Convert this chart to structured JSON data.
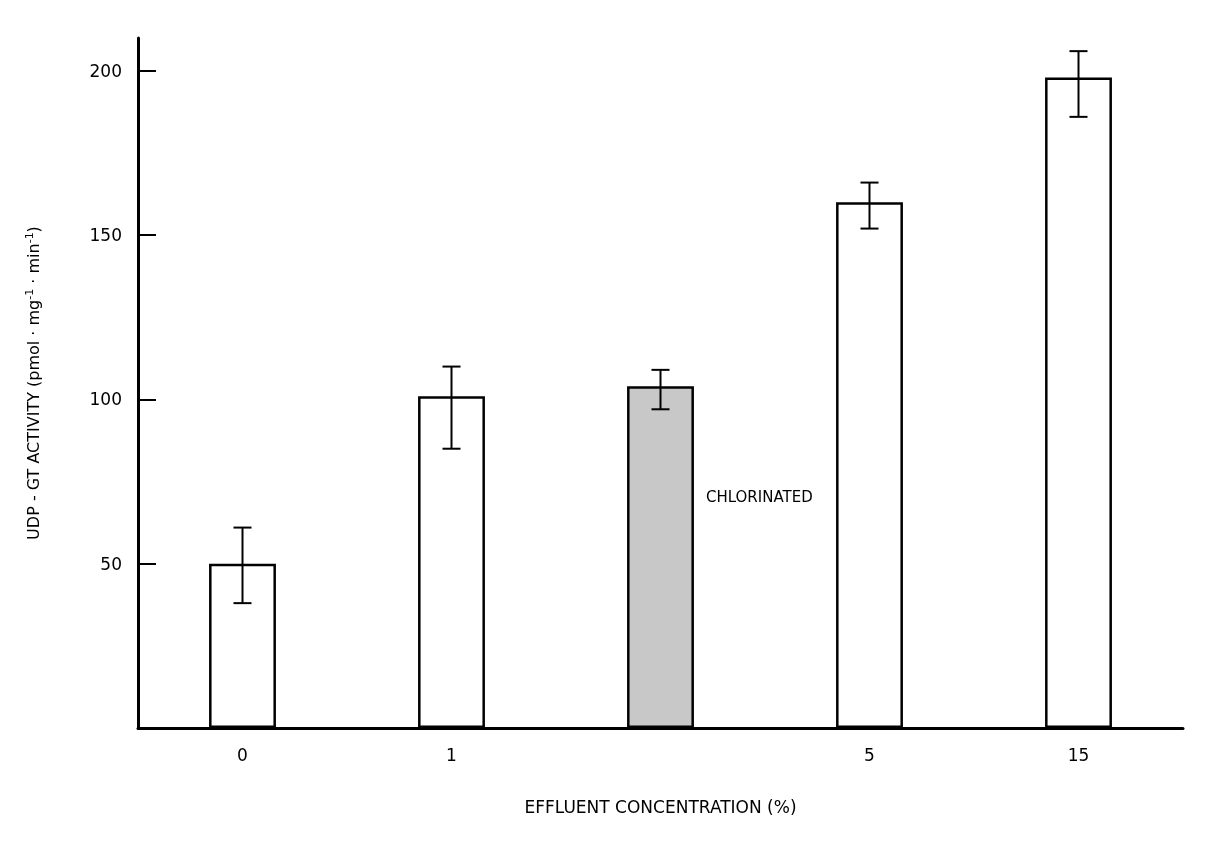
{
  "chart_data": {
    "type": "bar",
    "xlabel": "EFFLUENT CONCENTRATION (%)",
    "ylabel": "UDP - GT ACTIVITY (pmol · mg$^{-1}$ · min$^{-1}$)",
    "categories": [
      "0",
      "1",
      null,
      "5",
      "15"
    ],
    "series": [
      {
        "color": "#ffffff",
        "values": [
          50,
          101,
          null,
          160,
          198
        ],
        "errors": [
          [
            38,
            61
          ],
          [
            85,
            110
          ],
          null,
          [
            152,
            166
          ],
          [
            186,
            206
          ]
        ]
      },
      {
        "name": "CHLORINATED",
        "color": "#c8c8c8",
        "values": [
          null,
          null,
          104,
          null,
          null
        ],
        "errors": [
          null,
          null,
          [
            97,
            109
          ],
          null,
          null
        ]
      }
    ],
    "ylim": [
      0,
      210
    ],
    "yticks": [
      50,
      100,
      150,
      200
    ],
    "grid": false
  }
}
